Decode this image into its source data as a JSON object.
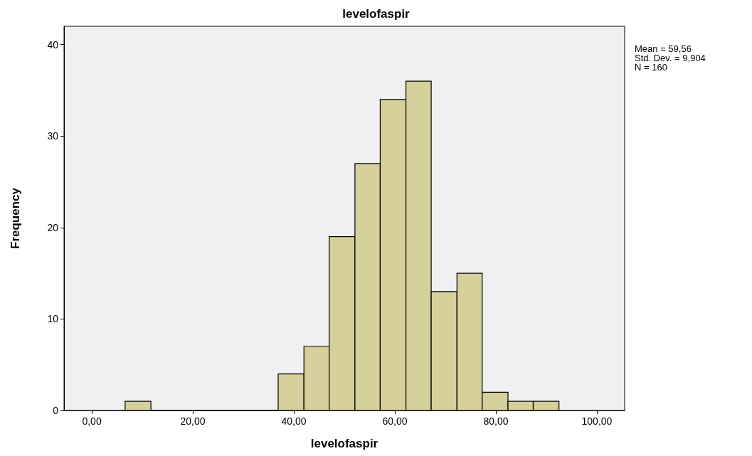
{
  "chart_data": {
    "type": "histogram",
    "title": "levelofaspir",
    "xlabel": "levelofaspir",
    "ylabel": "Frequency",
    "bins": [
      6.6,
      11.7,
      36.9,
      42.0,
      47.0,
      52.1,
      57.1,
      62.2,
      67.2,
      72.3,
      77.3,
      82.4,
      87.4,
      92.5
    ],
    "values": [
      1,
      0,
      4,
      7,
      19,
      27,
      34,
      36,
      13,
      15,
      2,
      1,
      1
    ],
    "color": "#d6d09a",
    "xlim": [
      -5.5,
      105.5
    ],
    "xticks": [
      {
        "value": 0,
        "label": "0,00"
      },
      {
        "value": 20,
        "label": "20,00"
      },
      {
        "value": 40,
        "label": "40,00"
      },
      {
        "value": 60,
        "label": "60,00"
      },
      {
        "value": 80,
        "label": "80,00"
      },
      {
        "value": 100,
        "label": "100,00"
      }
    ],
    "ylim": [
      0,
      42
    ],
    "yticks": [
      0,
      10,
      20,
      30,
      40
    ],
    "grid": false,
    "annotations": [
      "Mean = 59,56",
      "Std. Dev. = 9,904",
      "N = 160"
    ]
  }
}
